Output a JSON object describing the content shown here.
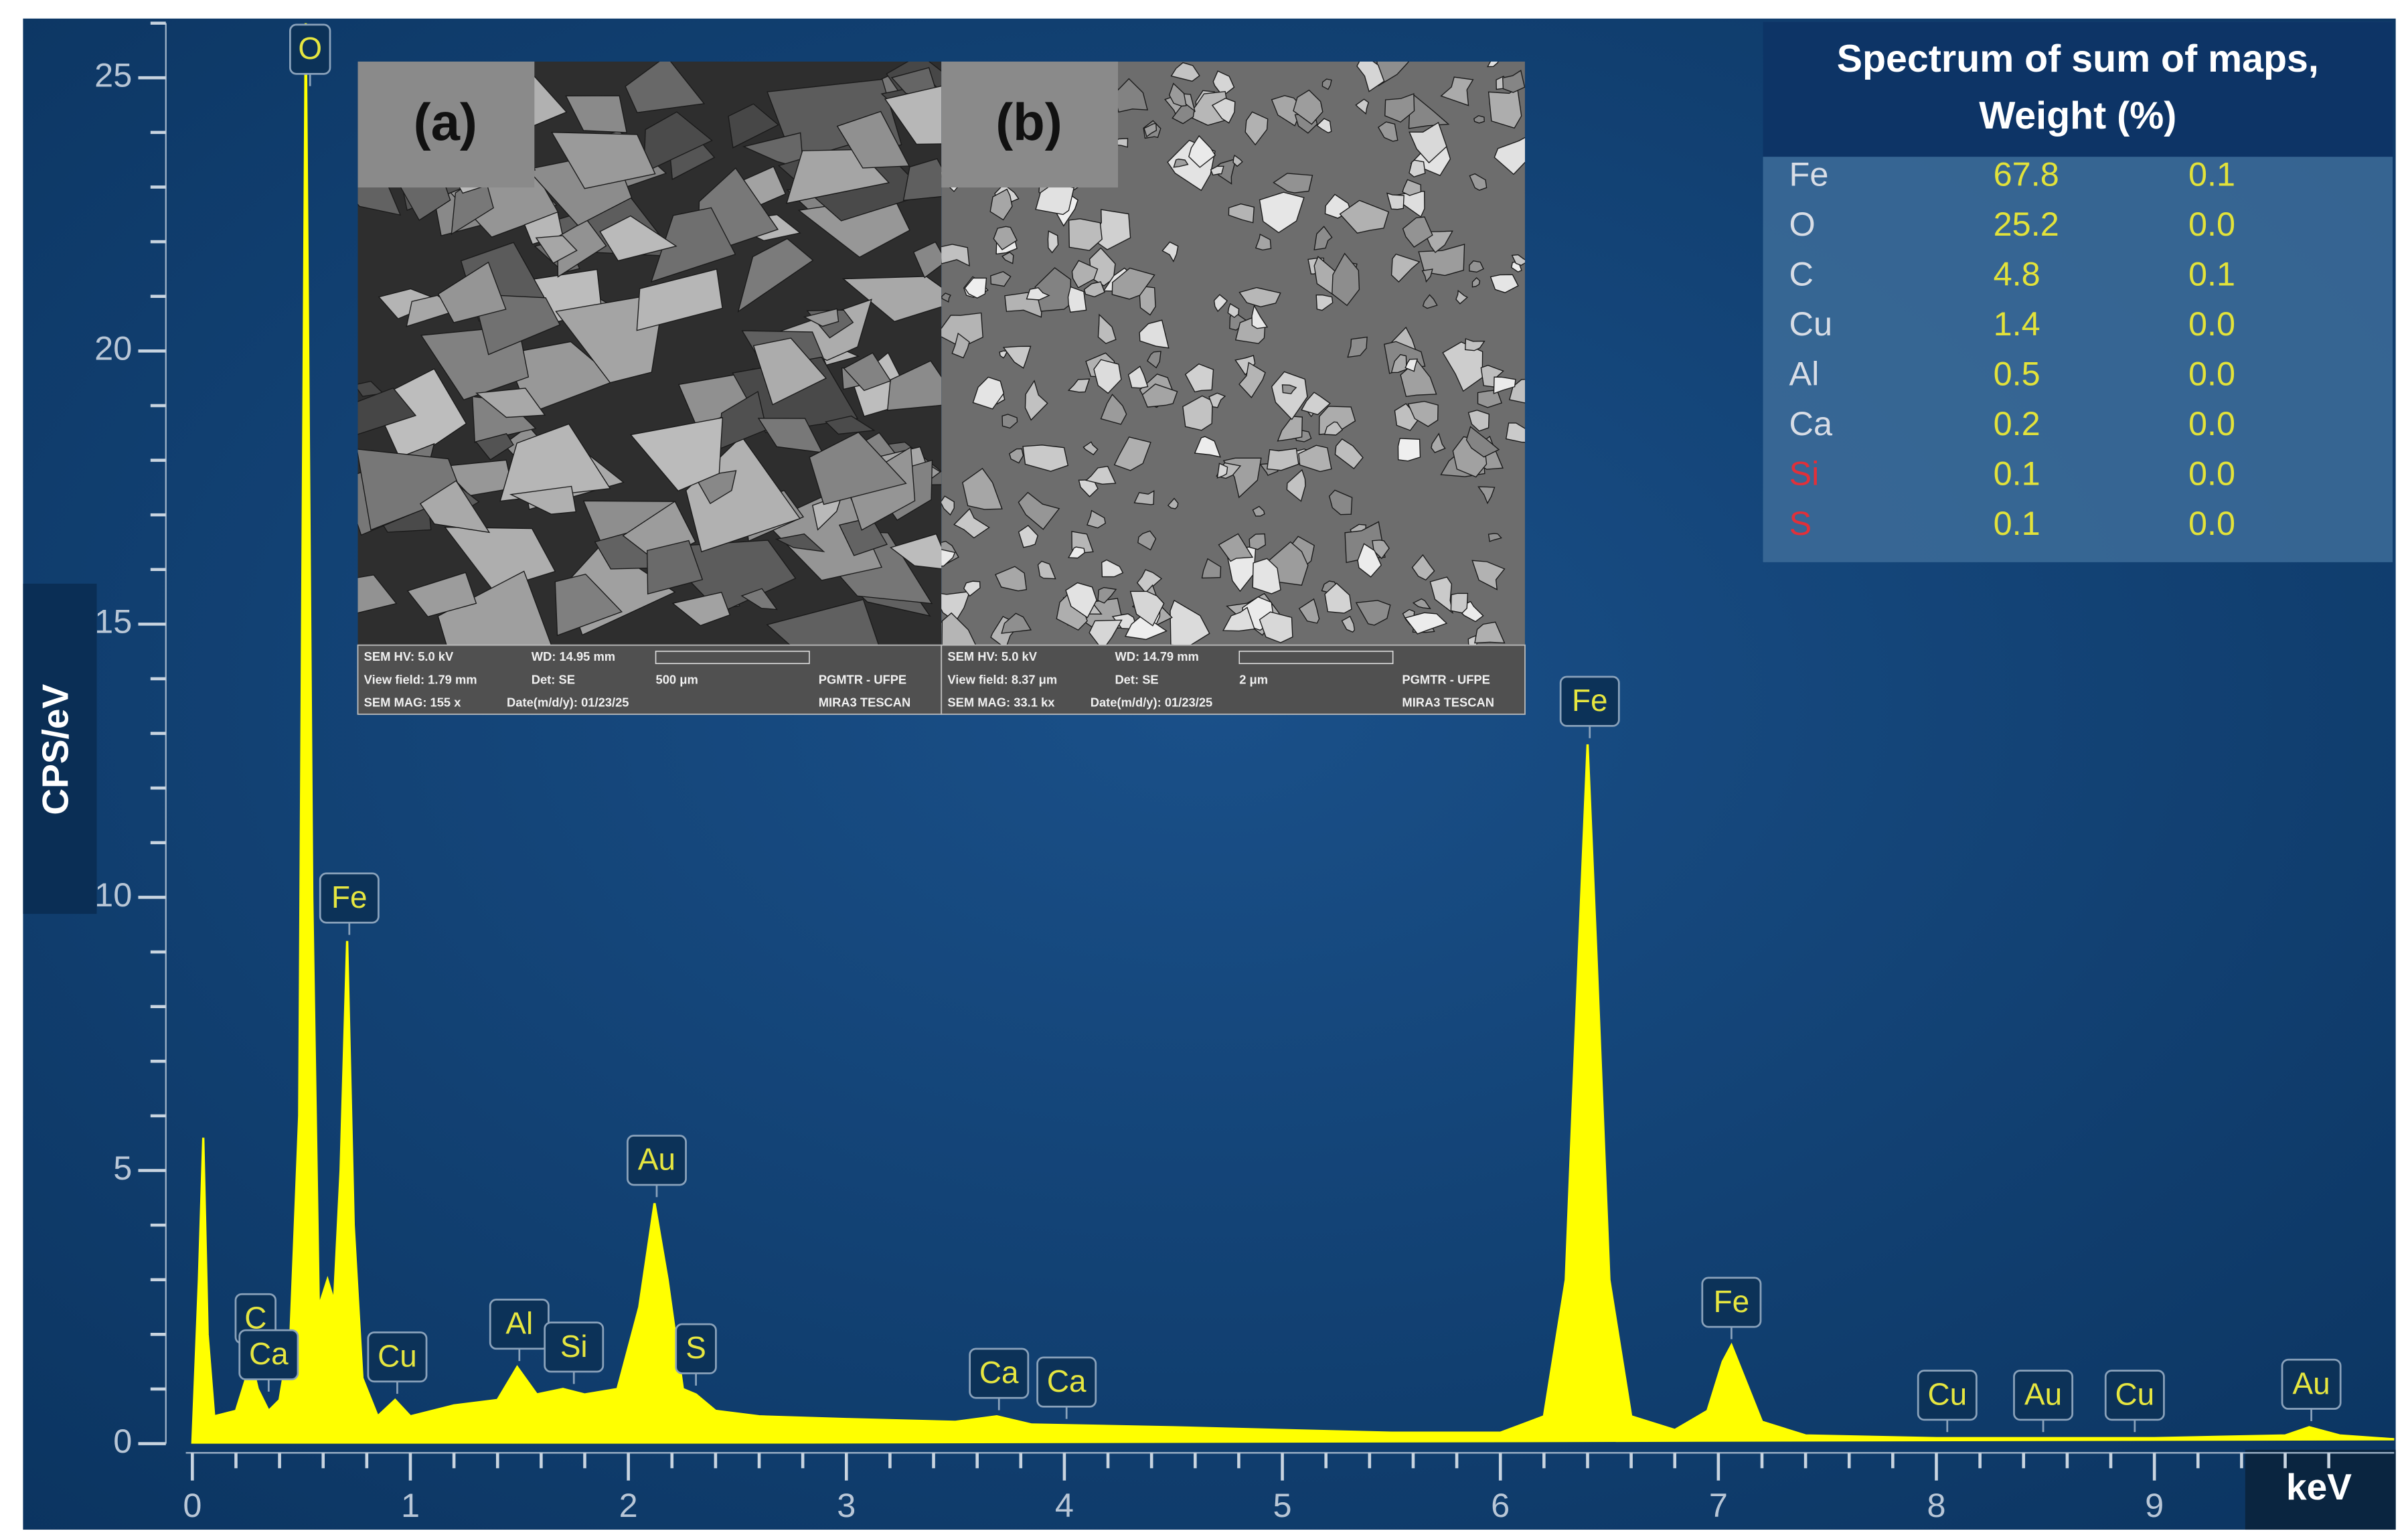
{
  "chart_data": {
    "type": "area",
    "axis_label_y": "CPS/eV",
    "axis_label_x": "keV",
    "color": "#ffff00",
    "xlim": [
      -0.03,
      10.1
    ],
    "xticks": [
      0,
      1,
      2,
      3,
      4,
      5,
      6,
      7,
      8,
      9
    ],
    "xminorticks": [
      0.2,
      0.4,
      0.6,
      0.8,
      1.2,
      1.4,
      1.6,
      1.8,
      2.2,
      2.4,
      2.6,
      2.8,
      3.2,
      3.4,
      3.6,
      3.8,
      4.2,
      4.4,
      4.6,
      4.8,
      5.2,
      5.4,
      5.6,
      5.8,
      6.2,
      6.4,
      6.6,
      6.8,
      7.2,
      7.4,
      7.6,
      7.8,
      8.2,
      8.4,
      8.6,
      8.8,
      9.2,
      9.4,
      9.6,
      9.8
    ],
    "ylim": [
      0,
      26
    ],
    "yticks": [
      0,
      5,
      10,
      15,
      20,
      25
    ],
    "yminorticks": [
      1,
      2,
      3,
      4,
      6,
      7,
      8,
      9,
      11,
      12,
      13,
      14,
      16,
      17,
      18,
      19,
      21,
      22,
      23,
      24,
      26
    ],
    "x": [
      0,
      0.03,
      0.05,
      0.07,
      0.1,
      0.2,
      0.27,
      0.3,
      0.35,
      0.4,
      0.45,
      0.49,
      0.52,
      0.55,
      0.58,
      0.62,
      0.65,
      0.68,
      0.71,
      0.74,
      0.78,
      0.85,
      0.93,
      1.0,
      1.2,
      1.4,
      1.49,
      1.58,
      1.7,
      1.8,
      1.95,
      2.05,
      2.12,
      2.18,
      2.25,
      2.31,
      2.4,
      2.6,
      3.0,
      3.5,
      3.69,
      3.85,
      4.5,
      5.0,
      5.5,
      6.0,
      6.2,
      6.3,
      6.36,
      6.4,
      6.44,
      6.5,
      6.6,
      6.8,
      6.95,
      7.02,
      7.06,
      7.12,
      7.2,
      7.4,
      8.0,
      9.0,
      9.6,
      9.71,
      9.85,
      10.1
    ],
    "series": [
      {
        "values": [
          0,
          3,
          5.6,
          2,
          0.5,
          0.6,
          1.5,
          1.0,
          0.6,
          0.8,
          2,
          6,
          26,
          10,
          2.5,
          3.0,
          2.6,
          5,
          9.2,
          4,
          1.2,
          0.5,
          0.8,
          0.5,
          0.7,
          0.8,
          1.4,
          0.9,
          1.0,
          0.9,
          1.0,
          2.5,
          4.4,
          3.0,
          1.0,
          0.9,
          0.6,
          0.5,
          0.45,
          0.4,
          0.5,
          0.35,
          0.3,
          0.25,
          0.2,
          0.2,
          0.5,
          3,
          9,
          12.8,
          9,
          3,
          0.5,
          0.25,
          0.6,
          1.5,
          1.8,
          1.2,
          0.4,
          0.15,
          0.1,
          0.1,
          0.15,
          0.3,
          0.15,
          0.08
        ]
      }
    ],
    "peak_labels": [
      {
        "label": "O",
        "x": 0.54
      },
      {
        "label": "Fe",
        "x": 0.72
      },
      {
        "label": "C",
        "x": 0.29
      },
      {
        "label": "Ca",
        "x": 0.35
      },
      {
        "label": "Cu",
        "x": 0.94
      },
      {
        "label": "Al",
        "x": 1.5
      },
      {
        "label": "Si",
        "x": 1.75
      },
      {
        "label": "Au",
        "x": 2.13
      },
      {
        "label": "S",
        "x": 2.31
      },
      {
        "label": "Ca",
        "x": 3.7
      },
      {
        "label": "Ca",
        "x": 4.01
      },
      {
        "label": "Fe",
        "x": 6.41
      },
      {
        "label": "Fe",
        "x": 7.06
      },
      {
        "label": "Cu",
        "x": 8.05
      },
      {
        "label": "Au",
        "x": 8.49
      },
      {
        "label": "Cu",
        "x": 8.91
      },
      {
        "label": "Au",
        "x": 9.72
      }
    ]
  },
  "table": {
    "title": [
      "Spectrum of sum of maps,",
      "Weight (%)"
    ],
    "rows": [
      {
        "element": "Fe",
        "weight": "67.8",
        "sigma": "0.1",
        "element_color": "#d8dde6"
      },
      {
        "element": "O",
        "weight": "25.2",
        "sigma": "0.0",
        "element_color": "#d8dde6"
      },
      {
        "element": "C",
        "weight": "4.8",
        "sigma": "0.1",
        "element_color": "#d8dde6"
      },
      {
        "element": "Cu",
        "weight": "1.4",
        "sigma": "0.0",
        "element_color": "#d8dde6"
      },
      {
        "element": "Al",
        "weight": "0.5",
        "sigma": "0.0",
        "element_color": "#d8dde6"
      },
      {
        "element": "Ca",
        "weight": "0.2",
        "sigma": "0.0",
        "element_color": "#d8dde6"
      },
      {
        "element": "Si",
        "weight": "0.1",
        "sigma": "0.0",
        "element_color": "#e0303a"
      },
      {
        "element": "S",
        "weight": "0.1",
        "sigma": "0.0",
        "element_color": "#e0303a"
      }
    ]
  },
  "insets": [
    {
      "label": "(a)",
      "footer": [
        "SEM HV: 5.0 kV",
        "WD: 14.95 mm",
        "MIRA3 TESCAN",
        "View field: 1.79 mm",
        "Det: SE",
        "500 μm",
        "SEM MAG: 155 x",
        "Date(m/d/y): 01/23/25",
        "PGMTR - UFPE"
      ]
    },
    {
      "label": "(b)",
      "footer": [
        "SEM HV: 5.0 kV",
        "WD: 14.79 mm",
        "MIRA3 TESCAN",
        "View field: 8.37 μm",
        "Det: SE",
        "2 μm",
        "SEM MAG: 33.1 kx",
        "Date(m/d/y): 01/23/25",
        "PGMTR - UFPE"
      ]
    }
  ]
}
